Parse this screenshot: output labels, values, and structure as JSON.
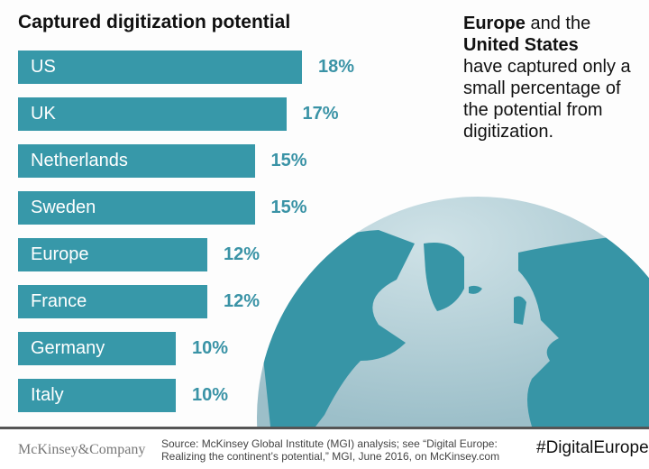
{
  "chart_data": {
    "type": "bar",
    "orientation": "horizontal",
    "title": "Captured digitization potential",
    "categories": [
      "US",
      "UK",
      "Netherlands",
      "Sweden",
      "Europe",
      "France",
      "Germany",
      "Italy"
    ],
    "values": [
      18,
      17,
      15,
      15,
      12,
      12,
      10,
      10
    ],
    "value_labels": [
      "18%",
      "17%",
      "15%",
      "15%",
      "12%",
      "12%",
      "10%",
      "10%"
    ],
    "unit": "%",
    "bar_color": "#3798a9",
    "label_color": "#3a93a6",
    "grid": false
  },
  "note": {
    "bold1": "Europe",
    "text1": " and the ",
    "bold2": "United States",
    "text2": " have captured only a small percentage of the potential from digitization."
  },
  "footer": {
    "logo": "McKinsey&Company",
    "source_line1": "Source: McKinsey Global Institute (MGI) analysis; see “Digital Europe:",
    "source_line2": "Realizing the continent’s potential,” MGI, June 2016, on McKinsey.com",
    "hashtag": "#DigitalEurope"
  },
  "colors": {
    "ocean": "#b9d4db",
    "land": "#3795a6"
  }
}
